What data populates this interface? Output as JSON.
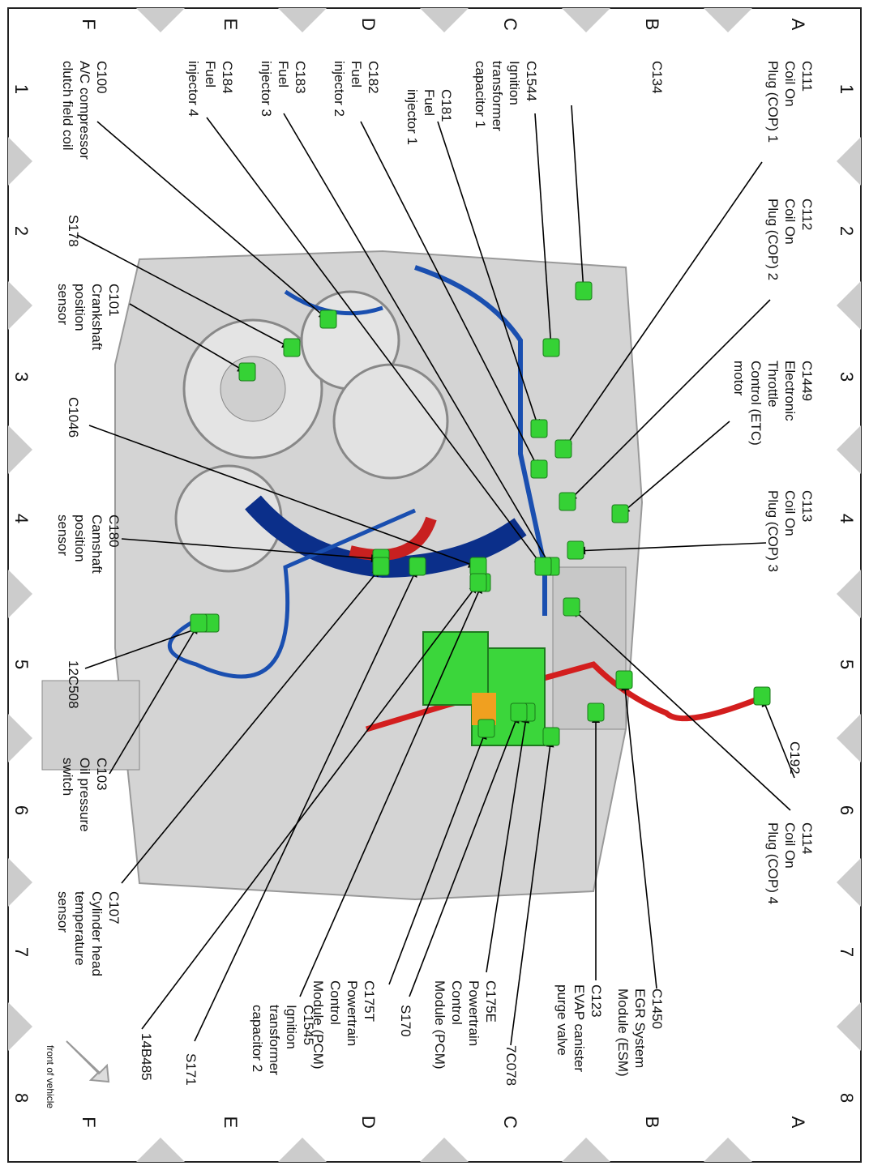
{
  "grid": {
    "columns": [
      "1",
      "2",
      "3",
      "4",
      "5",
      "6",
      "7",
      "8"
    ],
    "rows": [
      "A",
      "B",
      "C",
      "D",
      "E",
      "F"
    ]
  },
  "labels": [
    {
      "lines": [
        "C111",
        "Coil On",
        "Plug (COP) 1"
      ]
    },
    {
      "lines": [
        "C112",
        "Coil On",
        "Plug (COP) 2"
      ]
    },
    {
      "lines": [
        "C1449",
        "Electronic",
        "Throttle",
        "Control (ETC)",
        "motor"
      ]
    },
    {
      "lines": [
        "C113",
        "Coil On",
        "Plug (COP) 3"
      ]
    },
    {
      "lines": [
        "C114",
        "Coil On",
        "Plug (COP) 4"
      ]
    },
    {
      "lines": [
        "C192"
      ]
    },
    {
      "lines": [
        "C134"
      ]
    },
    {
      "lines": [
        "C1450",
        "EGR System",
        "Module (ESM)"
      ]
    },
    {
      "lines": [
        "C123",
        "EVAP canister",
        "purge valve"
      ]
    },
    {
      "lines": [
        "C1544",
        "Ignition",
        "transformer",
        "capacitor 1"
      ]
    },
    {
      "lines": [
        "C175E",
        "Powertrain",
        "Control",
        "Module (PCM)"
      ]
    },
    {
      "lines": [
        "7C078"
      ]
    },
    {
      "lines": [
        "C181",
        "Fuel",
        "injector 1"
      ]
    },
    {
      "lines": [
        "C182",
        "Fuel",
        "injector 2"
      ]
    },
    {
      "lines": [
        "S170"
      ]
    },
    {
      "lines": [
        "C175T",
        "Powertrain",
        "Control",
        "Module (PCM)"
      ]
    },
    {
      "lines": [
        "C183",
        "Fuel",
        "injector 3"
      ]
    },
    {
      "lines": [
        "C1545",
        "Ignition",
        "transformer",
        "capacitor 2"
      ]
    },
    {
      "lines": [
        "C184",
        "Fuel",
        "injector 4"
      ]
    },
    {
      "lines": [
        "S171"
      ]
    },
    {
      "lines": [
        "C100",
        "A/C compressor",
        "clutch field coil"
      ]
    },
    {
      "lines": [
        "S178"
      ]
    },
    {
      "lines": [
        "C101",
        "Crankshaft",
        "position",
        "sensor"
      ]
    },
    {
      "lines": [
        "C1046"
      ]
    },
    {
      "lines": [
        "C180",
        "Camshaft",
        "position",
        "sensor"
      ]
    },
    {
      "lines": [
        "12C508"
      ]
    },
    {
      "lines": [
        "C103",
        "Oil pressure",
        "switch"
      ]
    },
    {
      "lines": [
        "C107",
        "Cylinder head",
        "temperature",
        "sensor"
      ]
    },
    {
      "lines": [
        "14B485"
      ]
    }
  ],
  "front_marker": "front of vehicle"
}
